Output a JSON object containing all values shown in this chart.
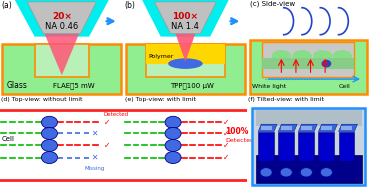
{
  "bg_color": "#ffffff",
  "panel_a": {
    "label": "(a)",
    "obj_text_line1": "20×",
    "obj_text_line2": "NA 0.46",
    "glass_label": "Glass",
    "power_label": "FLAE～5 mW",
    "box_color": "#90ee90",
    "box_border": "#ff8c00",
    "obj_body_color": "#b0b0b0",
    "obj_cone_color": "#ff5577",
    "obj_cyan": "#00eeee",
    "beam_color": "#ff5577"
  },
  "panel_b": {
    "label": "(b)",
    "obj_text_line1": "100×",
    "obj_text_line2": "NA 1.4",
    "polymer_label": "Polymer",
    "power_label": "TPP～100 μW",
    "box_color": "#90ee90",
    "box_border": "#ff8c00",
    "yellow_color": "#ffd700",
    "polymer_color": "#4169e1",
    "beam_color": "#ff5577"
  },
  "panel_c": {
    "label": "(c) Side-view",
    "text1": "White light",
    "text2": "Cell",
    "box_color": "#90ee90",
    "box_border": "#ff8c00",
    "inner_color": "#d0d0d0",
    "lens_color": "#90ee90",
    "wave_color": "#2244cc",
    "red_arrow_color": "#ff0000",
    "blue_arrow_color": "#1e90ff"
  },
  "panel_d": {
    "label": "(d) Top-view: without limit",
    "cell_label": "Cell",
    "detected_label": "Detected",
    "missing_label": "Missing",
    "cell_color": "#4169e1",
    "cell_edge": "#00008b",
    "detect_color": "#ff0000",
    "missing_color": "#4169e1",
    "beam_green": "#00bb00",
    "beam_red": "#ff0000",
    "border_color": "#ff2222"
  },
  "panel_e": {
    "label": "(e) Top-view: with limit",
    "detected_label": "100%",
    "detected_label2": "Detected",
    "cell_color": "#4169e1",
    "cell_edge": "#00008b",
    "detect_color": "#ff0000",
    "beam_green": "#00bb00",
    "beam_red": "#ff0000",
    "border_color": "#ff2222"
  },
  "panel_f": {
    "label": "(f) Tilted-view: with limit",
    "border_color": "#1e90ff",
    "bg_color": "#c8d4e0",
    "dark_blue": "#00008b",
    "med_blue": "#0000cd",
    "light_blue": "#4169e1"
  },
  "inter_arrow_color": "#1e90ff"
}
